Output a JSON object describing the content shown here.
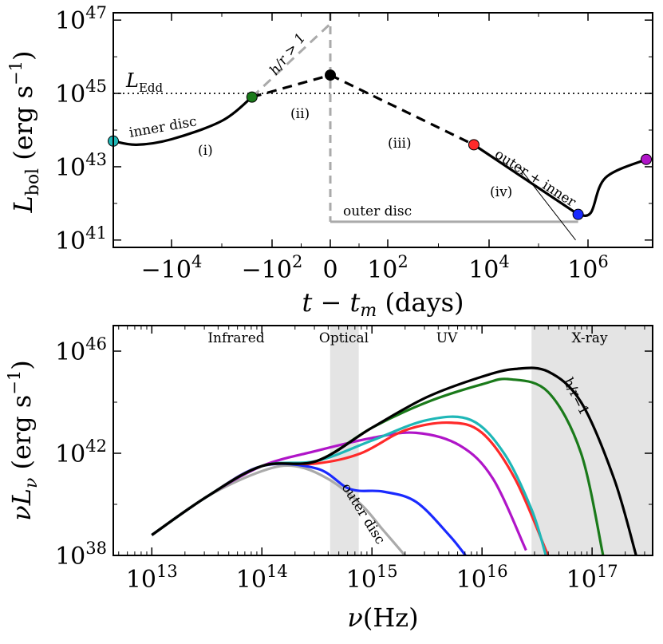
{
  "chart_data": [
    {
      "type": "line",
      "panel": "top",
      "ylabel": "L_bol (erg s^-1)",
      "xlabel": "t − t_m (days)",
      "yscale": "log",
      "ylim_log10": [
        40.8,
        47.2
      ],
      "xscale": "symlog",
      "x_ticks": [
        {
          "pos_data": -10000,
          "label": "−10^4"
        },
        {
          "pos_data": -100,
          "label": "−10^2"
        },
        {
          "pos_data": 0,
          "label": "0"
        },
        {
          "pos_data": 100,
          "label": "10^2"
        },
        {
          "pos_data": 10000,
          "label": "10^4"
        },
        {
          "pos_data": 1000000,
          "label": "10^6"
        }
      ],
      "y_ticks": [
        {
          "log10": 41,
          "label": "10^41"
        },
        {
          "log10": 43,
          "label": "10^43"
        },
        {
          "log10": 45,
          "label": "10^45"
        },
        {
          "log10": 47,
          "label": "10^47"
        }
      ],
      "reference_lines": [
        {
          "name": "L_Edd",
          "log10": 45.0,
          "style": "dotted",
          "label": "L_Edd"
        }
      ],
      "annotations": {
        "inner_disc": "inner disc",
        "outer_disc": "outer disc",
        "outer_plus_inner": "outer + inner",
        "h_over_r": "h/r > 1",
        "phase_i": "(i)",
        "phase_ii": "(ii)",
        "phase_iii": "(iii)",
        "phase_iv": "(iv)"
      },
      "curves": [
        {
          "name": "inner disc",
          "style": "solid",
          "color": "#000000",
          "points_log10": [
            [
              -5.0,
              43.7
            ],
            [
              -4.6,
              43.6
            ],
            [
              -4.0,
              43.75
            ],
            [
              -3.0,
              44.25
            ],
            [
              -2.4,
              44.9
            ]
          ]
        },
        {
          "name": "",
          "style": "dashed",
          "color": "#000000",
          "points_log10": [
            [
              -2.4,
              44.9
            ],
            [
              0,
              45.5
            ]
          ]
        },
        {
          "name": "",
          "style": "dashed",
          "color": "#000000",
          "points_log10": [
            [
              0,
              45.5
            ],
            [
              3.7,
              43.6
            ]
          ]
        },
        {
          "name": "outer + inner",
          "style": "solid",
          "color": "#000000",
          "points_log10": [
            [
              3.7,
              43.6
            ],
            [
              5.8,
              41.7
            ]
          ]
        },
        {
          "name": "",
          "style": "solid",
          "color": "#000000",
          "points_log10": [
            [
              5.8,
              41.7
            ],
            [
              6.05,
              41.75
            ],
            [
              6.3,
              42.7
            ],
            [
              7.0,
              43.2
            ]
          ]
        },
        {
          "name": "outer disc",
          "style": "solid",
          "color": "#aaaaaa",
          "points_log10": [
            [
              0,
              41.5
            ],
            [
              5.8,
              41.5
            ]
          ]
        },
        {
          "name": "h/r > 1",
          "style": "dashed",
          "color": "#aaaaaa",
          "points_log10": [
            [
              -2.4,
              44.9
            ],
            [
              0,
              46.9
            ]
          ]
        }
      ],
      "markers": [
        {
          "color": "#1fb7b7",
          "x": -5.0,
          "y_log10": 43.7
        },
        {
          "color": "#1a7a1a",
          "x": -2.4,
          "y_log10": 44.9
        },
        {
          "color": "#000000",
          "x": 0,
          "y_log10": 45.5
        },
        {
          "color": "#ff2a2a",
          "x": 3.7,
          "y_log10": 43.6
        },
        {
          "color": "#1a2aff",
          "x": 5.8,
          "y_log10": 41.7
        },
        {
          "color": "#b015c8",
          "x": 7.0,
          "y_log10": 43.2
        }
      ]
    },
    {
      "type": "line",
      "panel": "bottom",
      "ylabel": "νL_ν (erg s^-1)",
      "xlabel": "ν(Hz)",
      "yscale": "log",
      "xscale": "log",
      "xlim_log10": [
        12.65,
        17.55
      ],
      "ylim_log10": [
        38.0,
        47.0
      ],
      "x_ticks": [
        {
          "log10": 13,
          "label": "10^13"
        },
        {
          "log10": 14,
          "label": "10^14"
        },
        {
          "log10": 15,
          "label": "10^15"
        },
        {
          "log10": 16,
          "label": "10^16"
        },
        {
          "log10": 17,
          "label": "10^17"
        }
      ],
      "y_ticks": [
        {
          "log10": 38,
          "label": "10^38"
        },
        {
          "log10": 42,
          "label": "10^42"
        },
        {
          "log10": 46,
          "label": "10^46"
        }
      ],
      "bands": [
        {
          "label": "Infrared",
          "shaded": false
        },
        {
          "label": "Optical",
          "shaded": true,
          "log10_range": [
            14.62,
            14.88
          ]
        },
        {
          "label": "UV",
          "shaded": false
        },
        {
          "label": "X-ray",
          "shaded": true,
          "log10_range": [
            16.45,
            17.55
          ]
        }
      ],
      "series": [
        {
          "name": "h/r=1",
          "color": "#000000",
          "points_log10": [
            [
              13.0,
              38.8
            ],
            [
              13.5,
              40.3
            ],
            [
              14.0,
              41.5
            ],
            [
              14.5,
              41.7
            ],
            [
              15.0,
              43.0
            ],
            [
              15.5,
              44.2
            ],
            [
              16.0,
              45.0
            ],
            [
              16.3,
              45.3
            ],
            [
              16.6,
              45.2
            ],
            [
              16.9,
              44.0
            ],
            [
              17.2,
              41.0
            ],
            [
              17.4,
              38.0
            ]
          ]
        },
        {
          "name": "",
          "color": "#1a7a1a",
          "points_log10": [
            [
              13.0,
              38.8
            ],
            [
              13.5,
              40.3
            ],
            [
              14.0,
              41.5
            ],
            [
              14.5,
              41.7
            ],
            [
              15.0,
              43.0
            ],
            [
              15.5,
              44.0
            ],
            [
              16.0,
              44.7
            ],
            [
              16.25,
              44.9
            ],
            [
              16.6,
              44.4
            ],
            [
              16.9,
              42.0
            ],
            [
              17.1,
              38.0
            ]
          ]
        },
        {
          "name": "",
          "color": "#1fb7b7",
          "points_log10": [
            [
              13.0,
              38.8
            ],
            [
              13.5,
              40.3
            ],
            [
              14.0,
              41.5
            ],
            [
              14.5,
              41.7
            ],
            [
              15.0,
              42.5
            ],
            [
              15.5,
              43.3
            ],
            [
              15.9,
              43.3
            ],
            [
              16.2,
              42.0
            ],
            [
              16.45,
              39.8
            ],
            [
              16.58,
              38.0
            ]
          ]
        },
        {
          "name": "",
          "color": "#ff2a2a",
          "points_log10": [
            [
              13.0,
              38.8
            ],
            [
              13.5,
              40.3
            ],
            [
              14.0,
              41.5
            ],
            [
              14.5,
              41.6
            ],
            [
              14.9,
              42.0
            ],
            [
              15.3,
              42.9
            ],
            [
              15.7,
              43.2
            ],
            [
              16.0,
              42.8
            ],
            [
              16.3,
              41.0
            ],
            [
              16.6,
              38.0
            ]
          ]
        },
        {
          "name": "",
          "color": "#b015c8",
          "points_log10": [
            [
              13.0,
              38.8
            ],
            [
              13.5,
              40.3
            ],
            [
              14.0,
              41.5
            ],
            [
              14.5,
              42.1
            ],
            [
              15.0,
              42.6
            ],
            [
              15.4,
              42.8
            ],
            [
              15.8,
              42.3
            ],
            [
              16.1,
              41.0
            ],
            [
              16.4,
              38.2
            ]
          ]
        },
        {
          "name": "",
          "color": "#1a2aff",
          "points_log10": [
            [
              13.0,
              38.8
            ],
            [
              13.5,
              40.3
            ],
            [
              14.0,
              41.5
            ],
            [
              14.5,
              41.4
            ],
            [
              14.8,
              40.6
            ],
            [
              15.1,
              40.5
            ],
            [
              15.4,
              40.1
            ],
            [
              15.7,
              38.8
            ],
            [
              15.85,
              38.0
            ]
          ]
        },
        {
          "name": "outer disc",
          "color": "#aaaaaa",
          "points_log10": [
            [
              13.0,
              38.8
            ],
            [
              13.5,
              40.3
            ],
            [
              14.0,
              41.3
            ],
            [
              14.3,
              41.5
            ],
            [
              14.6,
              41.0
            ],
            [
              14.9,
              40.0
            ],
            [
              15.1,
              39.0
            ],
            [
              15.3,
              38.0
            ]
          ]
        }
      ]
    }
  ]
}
